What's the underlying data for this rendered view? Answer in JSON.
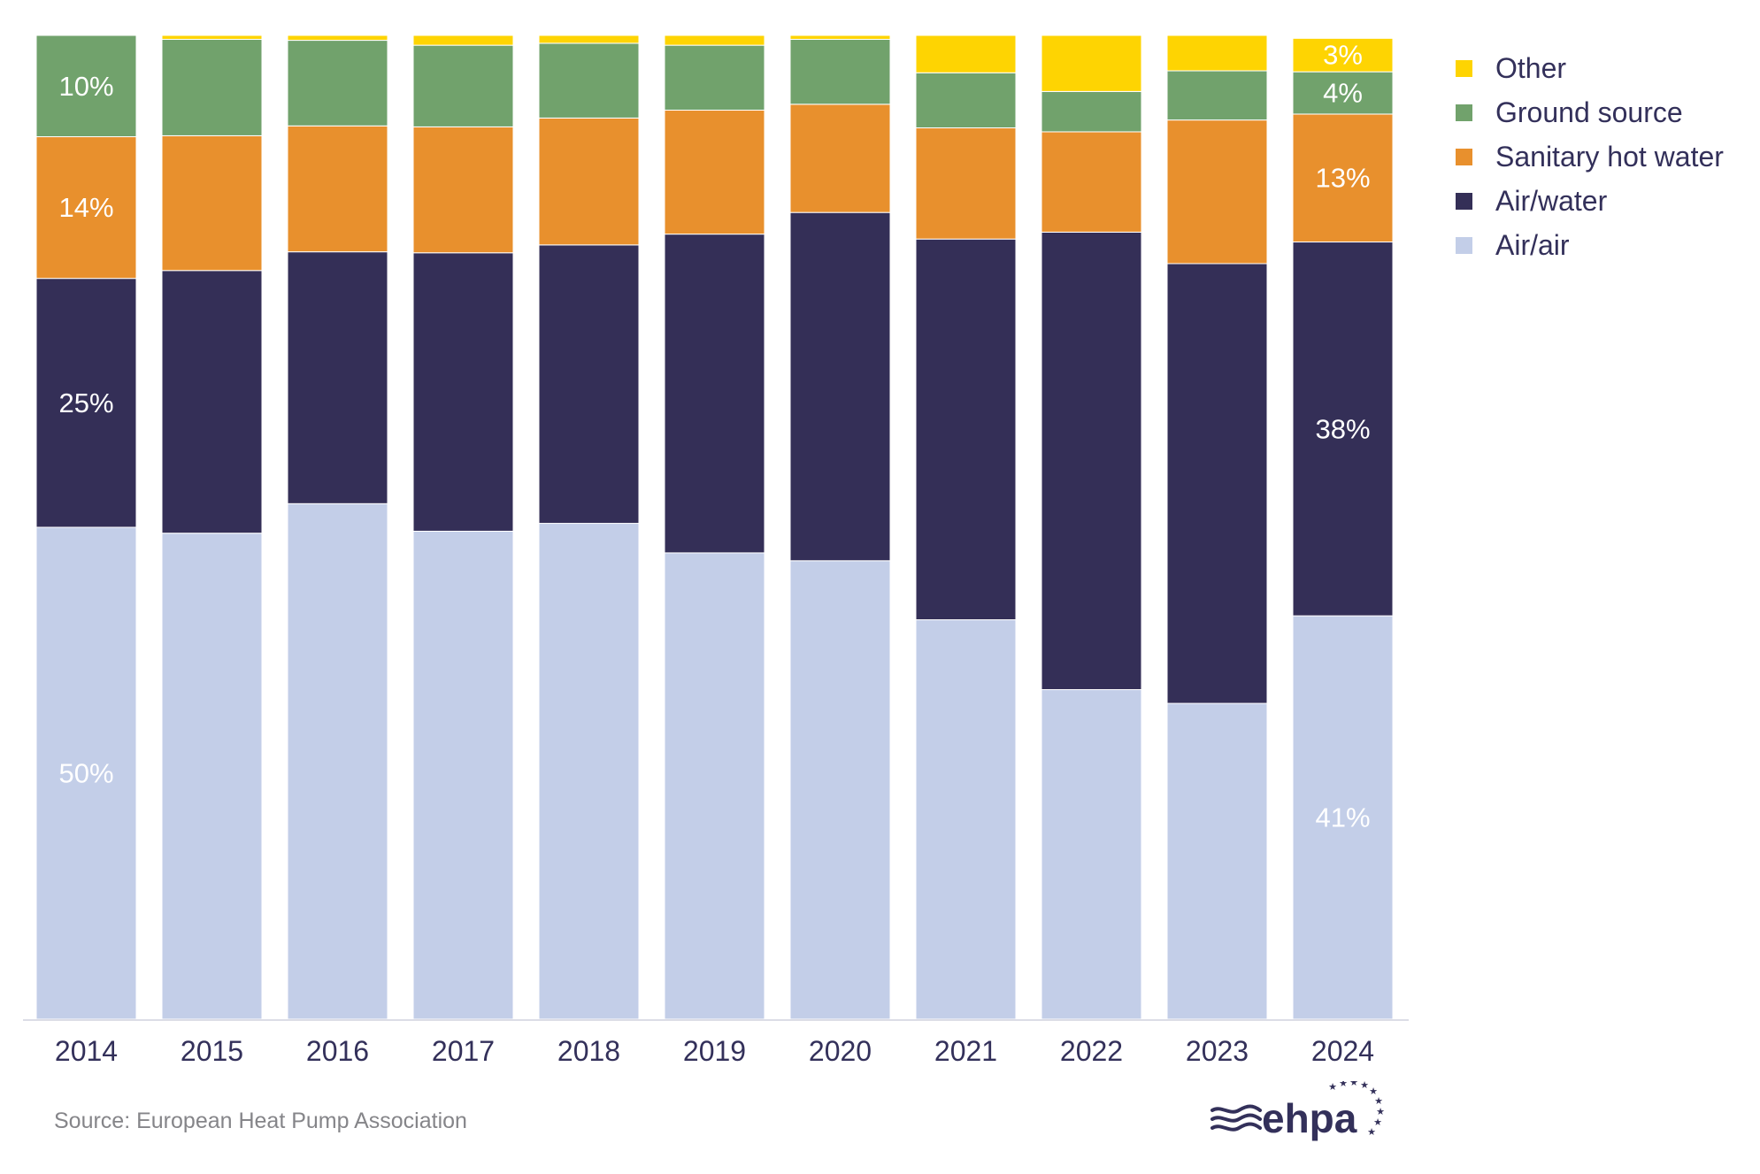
{
  "chart_data": {
    "type": "bar",
    "stacked": true,
    "percent_stacked": true,
    "categories": [
      "2014",
      "2015",
      "2016",
      "2017",
      "2018",
      "2019",
      "2020",
      "2021",
      "2022",
      "2023",
      "2024"
    ],
    "ylim": [
      0,
      100
    ],
    "grid": false,
    "legend_position": "right",
    "series": [
      {
        "name": "Air/air",
        "color": "#c3cee8",
        "label_color": "#ffffff",
        "values": [
          50,
          49.4,
          52.4,
          49.6,
          50.4,
          47.4,
          46.6,
          40.6,
          33.5,
          32.1,
          41
        ],
        "labels": [
          "50%",
          "",
          "",
          "",
          "",
          "",
          "",
          "",
          "",
          "",
          "41%"
        ]
      },
      {
        "name": "Air/water",
        "color": "#342f57",
        "label_color": "#ffffff",
        "values": [
          25.3,
          26.7,
          25.6,
          28.3,
          28.3,
          32.4,
          35.4,
          38.7,
          46.5,
          44.7,
          38
        ],
        "labels": [
          "25%",
          "",
          "",
          "",
          "",
          "",
          "",
          "",
          "",
          "",
          "38%"
        ]
      },
      {
        "name": "Sanitary hot water",
        "color": "#e8902d",
        "label_color": "#ffffff",
        "values": [
          14.4,
          13.7,
          12.8,
          12.8,
          12.9,
          12.6,
          11,
          11.3,
          10.2,
          14.6,
          13
        ],
        "labels": [
          "14%",
          "",
          "",
          "",
          "",
          "",
          "",
          "",
          "",
          "",
          "13%"
        ]
      },
      {
        "name": "Ground source",
        "color": "#71a26c",
        "label_color": "#ffffff",
        "values": [
          10.3,
          9.8,
          8.7,
          8.3,
          7.6,
          6.6,
          6.6,
          5.6,
          4.1,
          5,
          4.3
        ],
        "labels": [
          "10%",
          "",
          "",
          "",
          "",
          "",
          "",
          "",
          "",
          "",
          "4%"
        ]
      },
      {
        "name": "Other",
        "color": "#fed402",
        "label_color": "#ffffff",
        "values": [
          0,
          0.4,
          0.5,
          1,
          0.8,
          1,
          0.4,
          3.8,
          5.7,
          3.6,
          3.4
        ],
        "labels": [
          "",
          "",
          "",
          "",
          "",
          "",
          "",
          "",
          "",
          "",
          "3%"
        ]
      }
    ]
  },
  "legend": {
    "items": [
      {
        "label": "Other",
        "color": "#fed402"
      },
      {
        "label": "Ground source",
        "color": "#71a26c"
      },
      {
        "label": "Sanitary hot water",
        "color": "#e8902d"
      },
      {
        "label": "Air/water",
        "color": "#342f57"
      },
      {
        "label": "Air/air",
        "color": "#c3cee8"
      }
    ]
  },
  "footer": {
    "source": "Source: European Heat Pump Association",
    "logo_text": "ehpa"
  },
  "colors": {
    "axis": "#dcdde6",
    "text": "#33305a",
    "source_text": "#858589"
  }
}
